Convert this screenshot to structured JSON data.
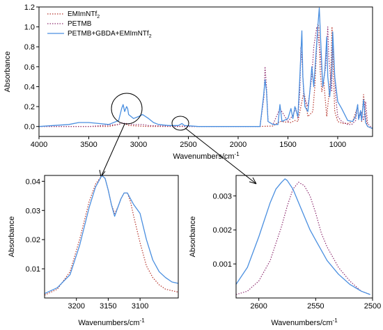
{
  "colors": {
    "emim": "#b5332a",
    "petmb": "#8e2c6f",
    "blend": "#4a8fe0",
    "axis": "#000000"
  },
  "chart_data": [
    {
      "type": "line",
      "panel": "main",
      "xlabel": "Wavenumbers/cm",
      "xlabel_sup": "-1",
      "ylabel": "Absorbance",
      "xlim": [
        4000,
        650
      ],
      "ylim": [
        -0.1,
        1.2
      ],
      "x_reversed": true,
      "xticks": [
        4000,
        3500,
        3000,
        2500,
        2000,
        1500,
        1000
      ],
      "yticks": [
        0.0,
        0.2,
        0.4,
        0.6,
        0.8,
        1.0,
        1.2
      ],
      "ytick_labels": [
        "0.0",
        "0.2",
        "0.4",
        "0.6",
        "0.8",
        "1.0",
        "1.2"
      ],
      "legend_position": "top-left",
      "series": [
        {
          "name": "EMImNTf",
          "name_sub": "2",
          "style": "dotted",
          "color_key": "emim",
          "x": [
            4000,
            3500,
            3300,
            3200,
            3170,
            3150,
            3120,
            3100,
            3000,
            2900,
            2600,
            2000,
            1800,
            1650,
            1580,
            1470,
            1430,
            1400,
            1350,
            1340,
            1330,
            1300,
            1250,
            1230,
            1200,
            1190,
            1175,
            1160,
            1140,
            1110,
            1090,
            1070,
            1057,
            1045,
            1030,
            1000,
            950,
            900,
            850,
            800,
            790,
            770,
            760,
            740,
            710,
            700,
            650
          ],
          "y": [
            0.0,
            0.0,
            0.0,
            0.02,
            0.035,
            0.03,
            0.02,
            0.01,
            0.005,
            0.0,
            0.0,
            0.0,
            0.0,
            0.005,
            0.05,
            0.04,
            0.06,
            0.05,
            0.3,
            0.34,
            0.3,
            0.1,
            0.15,
            0.4,
            1.03,
            1.0,
            0.55,
            0.35,
            0.45,
            0.1,
            0.3,
            0.5,
            1.0,
            0.6,
            0.15,
            0.05,
            0.03,
            0.03,
            0.05,
            0.2,
            0.1,
            0.15,
            0.05,
            0.32,
            0.05,
            0.0,
            -0.02
          ]
        },
        {
          "name": "PETMB",
          "style": "dotted",
          "color_key": "petmb",
          "x": [
            4000,
            3500,
            3200,
            3160,
            3140,
            3120,
            3100,
            3050,
            3000,
            2960,
            2900,
            2600,
            2565,
            2540,
            2400,
            2000,
            1780,
            1740,
            1730,
            1715,
            1700,
            1650,
            1580,
            1500,
            1460,
            1420,
            1400,
            1380,
            1370,
            1355,
            1340,
            1300,
            1260,
            1240,
            1210,
            1170,
            1150,
            1120,
            1100,
            1090,
            1060,
            1050,
            1020,
            1000,
            960,
            900,
            860,
            820,
            800,
            790,
            760,
            740,
            720,
            700,
            650
          ],
          "y": [
            0.0,
            0.0,
            0.02,
            0.04,
            0.03,
            0.03,
            0.025,
            0.02,
            0.02,
            0.02,
            0.01,
            0.0,
            0.005,
            0.0,
            0.0,
            0.0,
            0.0,
            0.3,
            0.6,
            0.4,
            0.05,
            0.02,
            0.18,
            0.05,
            0.1,
            0.18,
            0.08,
            0.35,
            0.8,
            0.6,
            0.3,
            0.2,
            0.5,
            0.8,
            1.0,
            0.7,
            0.4,
            0.6,
            1.0,
            0.7,
            0.35,
            0.9,
            0.3,
            0.1,
            0.05,
            0.02,
            0.02,
            0.06,
            0.22,
            0.08,
            0.14,
            0.06,
            0.25,
            0.03,
            -0.02
          ]
        },
        {
          "name": "PETMB+GBDA+EMImNTf",
          "name_sub": "2",
          "style": "solid",
          "color_key": "blend",
          "x": [
            4000,
            3700,
            3600,
            3500,
            3400,
            3300,
            3200,
            3170,
            3155,
            3140,
            3120,
            3110,
            3100,
            3050,
            3000,
            2960,
            2900,
            2850,
            2800,
            2700,
            2600,
            2565,
            2540,
            2400,
            2000,
            1780,
            1745,
            1730,
            1715,
            1700,
            1650,
            1600,
            1580,
            1560,
            1500,
            1470,
            1450,
            1430,
            1400,
            1380,
            1360,
            1350,
            1330,
            1300,
            1280,
            1260,
            1240,
            1220,
            1200,
            1185,
            1170,
            1150,
            1130,
            1110,
            1100,
            1080,
            1060,
            1050,
            1030,
            1000,
            960,
            900,
            850,
            820,
            800,
            790,
            770,
            760,
            740,
            720,
            700,
            650
          ],
          "y": [
            0.0,
            0.02,
            0.04,
            0.04,
            0.03,
            0.02,
            0.06,
            0.18,
            0.22,
            0.15,
            0.2,
            0.18,
            0.12,
            0.08,
            0.1,
            0.12,
            0.08,
            0.04,
            0.02,
            0.01,
            0.01,
            0.03,
            0.01,
            0.0,
            0.0,
            0.0,
            0.3,
            0.47,
            0.35,
            0.05,
            0.02,
            0.02,
            0.22,
            0.05,
            0.08,
            0.18,
            0.08,
            0.2,
            0.1,
            0.5,
            0.96,
            0.5,
            0.2,
            0.15,
            0.35,
            0.6,
            0.4,
            0.7,
            1.0,
            1.19,
            0.85,
            0.4,
            0.55,
            0.9,
            0.5,
            0.3,
            0.55,
            0.95,
            0.5,
            0.25,
            0.18,
            0.06,
            0.05,
            0.1,
            0.22,
            0.07,
            0.16,
            0.06,
            0.27,
            0.04,
            0.0,
            -0.02
          ]
        }
      ]
    },
    {
      "type": "line",
      "panel": "zoom-ch",
      "xlabel": "Wavenumbers/cm",
      "xlabel_sup": "-1",
      "ylabel": "Absorbance",
      "xlim": [
        3250,
        3040
      ],
      "ylim": [
        0.0,
        0.042
      ],
      "x_reversed": true,
      "xticks": [
        3200,
        3150,
        3100
      ],
      "yticks": [
        0.01,
        0.02,
        0.03,
        0.04
      ],
      "ytick_labels": [
        "0.01",
        "0.02",
        "0.03",
        "0.04"
      ],
      "series": [
        {
          "name_ref": "EMImNTf2",
          "style": "dotted",
          "color_key": "emim",
          "x": [
            3250,
            3230,
            3210,
            3195,
            3180,
            3170,
            3160,
            3155,
            3150,
            3145,
            3140,
            3135,
            3130,
            3125,
            3120,
            3115,
            3110,
            3100,
            3090,
            3080,
            3070,
            3060,
            3050,
            3040
          ],
          "y": [
            0.001,
            0.003,
            0.009,
            0.02,
            0.033,
            0.039,
            0.042,
            0.041,
            0.037,
            0.032,
            0.029,
            0.031,
            0.034,
            0.036,
            0.036,
            0.033,
            0.028,
            0.019,
            0.011,
            0.007,
            0.0045,
            0.003,
            0.0025,
            0.002
          ]
        },
        {
          "name_ref": "PETMB+GBDA+EMImNTf2",
          "style": "solid",
          "color_key": "blend",
          "x": [
            3250,
            3230,
            3210,
            3195,
            3180,
            3170,
            3160,
            3155,
            3150,
            3145,
            3140,
            3135,
            3130,
            3125,
            3120,
            3115,
            3110,
            3100,
            3090,
            3080,
            3070,
            3060,
            3050,
            3040
          ],
          "y": [
            0.0015,
            0.0035,
            0.008,
            0.018,
            0.031,
            0.038,
            0.042,
            0.041,
            0.037,
            0.032,
            0.028,
            0.031,
            0.034,
            0.036,
            0.036,
            0.034,
            0.032,
            0.029,
            0.02,
            0.013,
            0.009,
            0.007,
            0.0055,
            0.005
          ]
        }
      ]
    },
    {
      "type": "line",
      "panel": "zoom-2560",
      "xlabel": "Wavenumbers/cm",
      "xlabel_sup": "-1",
      "ylabel": "Absorbance",
      "xlim": [
        2620,
        2500
      ],
      "ylim": [
        0.0,
        0.0036
      ],
      "x_reversed": true,
      "xticks": [
        2600,
        2550,
        2500
      ],
      "yticks": [
        0.001,
        0.002,
        0.003
      ],
      "ytick_labels": [
        "0.001",
        "0.002",
        "0.003"
      ],
      "series": [
        {
          "name_ref": "PETMB",
          "style": "dotted",
          "color_key": "petmb",
          "x": [
            2620,
            2610,
            2600,
            2590,
            2580,
            2575,
            2570,
            2565,
            2560,
            2555,
            2550,
            2545,
            2540,
            2530,
            2520,
            2510,
            2502
          ],
          "y": [
            0.0001,
            0.0002,
            0.0005,
            0.0011,
            0.0021,
            0.0027,
            0.0032,
            0.0034,
            0.0033,
            0.003,
            0.0025,
            0.0019,
            0.0015,
            0.0009,
            0.0005,
            0.0002,
            0.0001
          ]
        },
        {
          "name_ref": "PETMB+GBDA+EMImNTf2",
          "style": "solid",
          "color_key": "blend",
          "x": [
            2620,
            2610,
            2600,
            2590,
            2585,
            2580,
            2577,
            2575,
            2570,
            2565,
            2560,
            2555,
            2550,
            2545,
            2540,
            2530,
            2520,
            2510,
            2502
          ],
          "y": [
            0.0004,
            0.0009,
            0.0018,
            0.0028,
            0.0032,
            0.0034,
            0.0035,
            0.00345,
            0.0032,
            0.0028,
            0.0024,
            0.002,
            0.0017,
            0.0014,
            0.0011,
            0.0007,
            0.0004,
            0.0002,
            0.0001
          ]
        }
      ]
    }
  ]
}
